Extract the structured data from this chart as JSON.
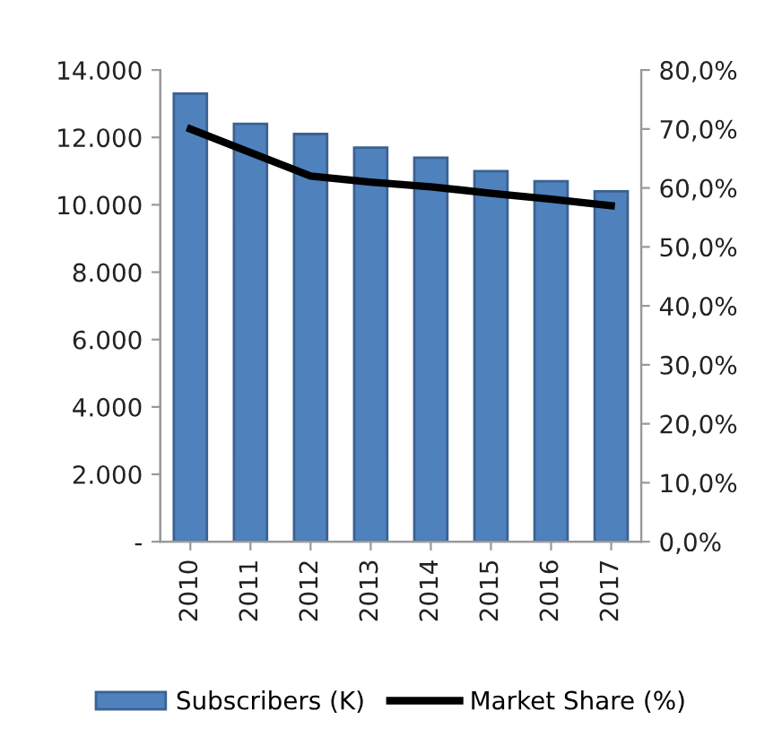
{
  "chart_data": {
    "type": "bar",
    "categories": [
      "2010",
      "2011",
      "2012",
      "2013",
      "2014",
      "2015",
      "2016",
      "2017"
    ],
    "series": [
      {
        "name": "Subscribers (K)",
        "color": "#4f81bd",
        "values": [
          13300,
          12400,
          12100,
          11700,
          11400,
          11000,
          10700,
          10400
        ]
      },
      {
        "name": "Market Share (%)",
        "type": "line",
        "axis": "y2",
        "color": "#000000",
        "values": [
          70,
          66,
          62,
          61,
          60.2,
          59.1,
          58.1,
          57
        ]
      }
    ],
    "ylim": [
      0,
      14000
    ],
    "yticks": [
      {
        "value": 0,
        "label": "-"
      },
      {
        "value": 2000,
        "label": "2.000"
      },
      {
        "value": 4000,
        "label": "4.000"
      },
      {
        "value": 6000,
        "label": "6.000"
      },
      {
        "value": 8000,
        "label": "8.000"
      },
      {
        "value": 10000,
        "label": "10.000"
      },
      {
        "value": 12000,
        "label": "12.000"
      },
      {
        "value": 14000,
        "label": "14.000"
      }
    ],
    "y2lim": [
      0,
      80
    ],
    "y2ticks": [
      {
        "value": 0,
        "label": "0,0%"
      },
      {
        "value": 10,
        "label": "10,0%"
      },
      {
        "value": 20,
        "label": "20,0%"
      },
      {
        "value": 30,
        "label": "30,0%"
      },
      {
        "value": 40,
        "label": "40,0%"
      },
      {
        "value": 50,
        "label": "50,0%"
      },
      {
        "value": 60,
        "label": "60,0%"
      },
      {
        "value": 70,
        "label": "70,0%"
      },
      {
        "value": 80,
        "label": "80,0%"
      }
    ],
    "grid": false,
    "legend": "bottom",
    "marker": "none",
    "line_style": "solid"
  }
}
